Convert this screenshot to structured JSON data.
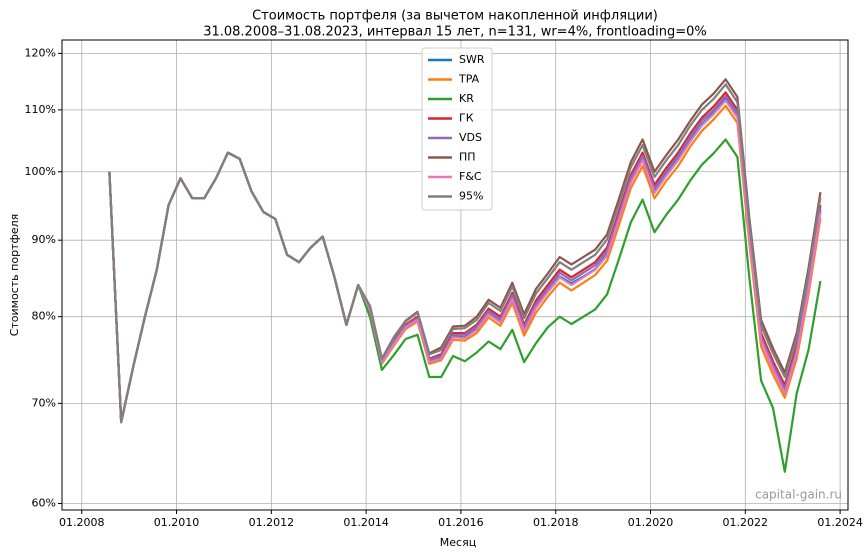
{
  "chart_data": {
    "type": "line",
    "title": "Стоимость портфеля (за вычетом накопленной инфляции)",
    "subtitle": "31.08.2008–31.08.2023, интервал 15 лет, n=131, wr=4%, frontloading=0%",
    "xlabel": "Месяц",
    "ylabel": "Стоимость портфеля",
    "watermark": "capital-gain.ru",
    "log_y": true,
    "grid": true,
    "legend": "upper center",
    "xlim": [
      "08.2007",
      "03.2024"
    ],
    "xticks": [
      "01.2008",
      "01.2010",
      "01.2012",
      "01.2014",
      "01.2016",
      "01.2018",
      "01.2020",
      "01.2022",
      "01.2024"
    ],
    "ylim": [
      59.4,
      122.5
    ],
    "yticks": [
      {
        "value": 60,
        "label": "60%"
      },
      {
        "value": 70,
        "label": "70%"
      },
      {
        "value": 80,
        "label": "80%"
      },
      {
        "value": 90,
        "label": "90%"
      },
      {
        "value": 100,
        "label": "100%"
      },
      {
        "value": 110,
        "label": "110%"
      },
      {
        "value": 120,
        "label": "120%"
      }
    ],
    "x": [
      "08.2008",
      "11.2008",
      "02.2009",
      "05.2009",
      "08.2009",
      "11.2009",
      "02.2010",
      "05.2010",
      "08.2010",
      "11.2010",
      "02.2011",
      "05.2011",
      "08.2011",
      "11.2011",
      "02.2012",
      "05.2012",
      "08.2012",
      "11.2012",
      "02.2013",
      "05.2013",
      "08.2013",
      "11.2013",
      "02.2014",
      "05.2014",
      "08.2014",
      "11.2014",
      "02.2015",
      "05.2015",
      "08.2015",
      "11.2015",
      "02.2016",
      "05.2016",
      "08.2016",
      "11.2016",
      "02.2017",
      "05.2017",
      "08.2017",
      "11.2017",
      "02.2018",
      "05.2018",
      "08.2018",
      "11.2018",
      "02.2019",
      "05.2019",
      "08.2019",
      "11.2019",
      "02.2020",
      "05.2020",
      "08.2020",
      "11.2020",
      "02.2021",
      "05.2021",
      "08.2021",
      "11.2021",
      "02.2022",
      "05.2022",
      "08.2022",
      "11.2022",
      "02.2023",
      "05.2023",
      "08.2023"
    ],
    "series": [
      {
        "name": "SWR",
        "color": "#1f77b4",
        "values": [
          100,
          68,
          74,
          80,
          86,
          95,
          99,
          96,
          96,
          99,
          103,
          102,
          97,
          94,
          93,
          88,
          87,
          89,
          90.5,
          85,
          79,
          84,
          80.8,
          74.6,
          76.8,
          78.8,
          79.7,
          74.7,
          75.1,
          77.6,
          77.5,
          78.5,
          80.4,
          79.4,
          82.3,
          78.4,
          81.3,
          83.2,
          85.1,
          84.2,
          85.1,
          86.1,
          88.1,
          93.1,
          98.5,
          102,
          97,
          99.6,
          102,
          104.9,
          107.6,
          109.5,
          111.9,
          108.9,
          90.5,
          77.2,
          74,
          71.3,
          75.7,
          83.7,
          94.1
        ]
      },
      {
        "name": "TPA",
        "color": "#ff7f0e",
        "values": [
          100,
          68,
          74,
          80,
          86,
          95,
          99,
          96,
          96,
          99,
          103,
          102,
          97,
          94,
          93,
          88,
          87,
          89,
          90.5,
          85,
          79,
          84,
          80.7,
          74.4,
          76.5,
          78.5,
          79.4,
          74.4,
          74.8,
          77.2,
          77.1,
          78,
          79.9,
          78.9,
          81.7,
          77.7,
          80.5,
          82.5,
          84.3,
          83.3,
          84.3,
          85.3,
          87.2,
          92.1,
          97.5,
          100.9,
          96,
          98.6,
          100.9,
          103.9,
          106.5,
          108.4,
          110.7,
          107.8,
          89.6,
          76.4,
          73.2,
          70.6,
          75,
          82.8,
          93.1
        ]
      },
      {
        "name": "KR",
        "color": "#2ca02c",
        "values": [
          100,
          68,
          74,
          80,
          86,
          95,
          99,
          96,
          96,
          99,
          103,
          102,
          97,
          94,
          93,
          88,
          87,
          89,
          90.5,
          85,
          79,
          84,
          79.9,
          73.7,
          75.4,
          77.3,
          77.8,
          72.9,
          72.9,
          75.3,
          74.7,
          75.7,
          77,
          76.1,
          78.4,
          74.6,
          76.8,
          78.7,
          80,
          79.1,
          80,
          80.9,
          82.8,
          87.4,
          92.5,
          95.8,
          91.1,
          93.6,
          95.8,
          98.6,
          101.1,
          102.9,
          105.1,
          102.3,
          85,
          72.5,
          69.5,
          63,
          71.1,
          76,
          84.5
        ]
      },
      {
        "name": "ГК",
        "color": "#d62728",
        "values": [
          100,
          68,
          74,
          80,
          86,
          95,
          99,
          96,
          96,
          99,
          103,
          102,
          97,
          94,
          93,
          88,
          87,
          89,
          90.5,
          85,
          79,
          84,
          81,
          74.7,
          77,
          79,
          80,
          75,
          75.5,
          78,
          78,
          79,
          81,
          80,
          83,
          79,
          82,
          84,
          86,
          85,
          86,
          87,
          89,
          94,
          99.5,
          103,
          98,
          100.6,
          103,
          106,
          108.7,
          110.6,
          113,
          110,
          91.4,
          78,
          74.7,
          72,
          76.5,
          84.5,
          95
        ]
      },
      {
        "name": "VDS",
        "color": "#9467bd",
        "values": [
          100,
          68,
          74,
          80,
          86,
          95,
          99,
          96,
          96,
          99,
          103,
          102,
          97,
          94,
          93,
          88,
          87,
          89,
          90.5,
          85,
          79,
          84,
          80.9,
          74.6,
          76.9,
          78.9,
          79.8,
          74.9,
          75.3,
          77.8,
          77.8,
          78.8,
          80.7,
          79.7,
          82.7,
          78.7,
          81.6,
          83.6,
          85.6,
          84.6,
          85.6,
          86.6,
          88.6,
          93.5,
          99,
          102.5,
          97.5,
          100.1,
          102.5,
          105.5,
          108.2,
          110,
          112.4,
          109.5,
          90.9,
          77.6,
          74.3,
          71.6,
          76.1,
          84.1,
          94.5
        ]
      },
      {
        "name": "ПП",
        "color": "#8c564b",
        "values": [
          100,
          68,
          74,
          80,
          86,
          95,
          99,
          96,
          96,
          99,
          103,
          102,
          97,
          94,
          93,
          88,
          87,
          89,
          90.5,
          85,
          79,
          84,
          81.3,
          75,
          77.5,
          79.5,
          80.6,
          75.6,
          76.3,
          78.8,
          78.9,
          80,
          82.1,
          81.1,
          84.3,
          80.3,
          83.5,
          85.5,
          87.7,
          86.7,
          87.7,
          88.7,
          90.8,
          95.9,
          101.5,
          105.1,
          100,
          102.6,
          105.1,
          108.1,
          110.9,
          112.8,
          115.3,
          112.2,
          93.2,
          79.6,
          76.2,
          73.4,
          78,
          86.2,
          96.9
        ]
      },
      {
        "name": "F&C",
        "color": "#e377c2",
        "values": [
          100,
          68,
          74,
          80,
          86,
          95,
          99,
          96,
          96,
          99,
          103,
          102,
          97,
          94,
          93,
          88,
          87,
          89,
          90.5,
          85,
          79,
          84,
          80.8,
          74.5,
          76.7,
          78.7,
          79.6,
          74.6,
          75,
          77.5,
          77.4,
          78.4,
          80.3,
          79.3,
          82.2,
          78.2,
          81.1,
          83.1,
          85,
          84,
          85,
          86,
          87.9,
          92.9,
          98.3,
          101.8,
          96.8,
          99.4,
          101.8,
          104.7,
          107.4,
          109.3,
          111.6,
          108.7,
          90.3,
          77.1,
          73.8,
          71.1,
          75.6,
          83.5,
          93.9
        ]
      },
      {
        "name": "95%",
        "color": "#7f7f7f",
        "values": [
          100,
          68,
          74,
          80,
          86,
          95,
          99,
          96,
          96,
          99,
          103,
          102,
          97,
          94,
          93,
          88,
          87,
          89,
          90.5,
          85,
          79,
          84,
          81.2,
          74.9,
          77.4,
          79.4,
          80.5,
          75.5,
          76,
          78.5,
          78.6,
          79.6,
          81.7,
          80.7,
          83.8,
          79.8,
          82.9,
          84.9,
          87,
          86,
          87,
          88,
          90.1,
          95.1,
          100.7,
          104.2,
          99.2,
          101.8,
          104.2,
          107.3,
          110,
          111.9,
          114.4,
          111.3,
          92.5,
          78.9,
          75.6,
          72.9,
          77.4,
          85.5,
          96.1
        ]
      }
    ]
  }
}
